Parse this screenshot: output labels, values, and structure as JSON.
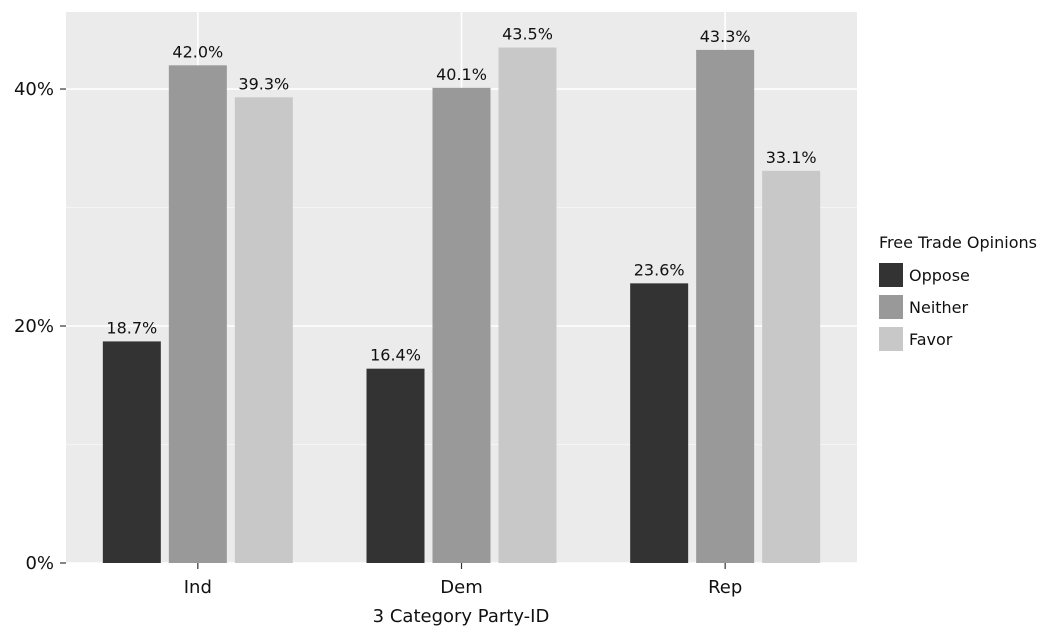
{
  "chart_data": {
    "type": "bar",
    "categories": [
      "Ind",
      "Dem",
      "Rep"
    ],
    "series": [
      {
        "name": "Oppose",
        "values": [
          18.7,
          16.4,
          23.6
        ],
        "labels": [
          "18.7%",
          "16.4%",
          "23.6%"
        ],
        "color": "#333333"
      },
      {
        "name": "Neither",
        "values": [
          42.0,
          40.1,
          43.3
        ],
        "labels": [
          "42.0%",
          "40.1%",
          "43.3%"
        ],
        "color": "#999999"
      },
      {
        "name": "Favor",
        "values": [
          39.3,
          43.5,
          33.1
        ],
        "labels": [
          "39.3%",
          "43.5%",
          "33.1%"
        ],
        "color": "#c8c8c8"
      }
    ],
    "xlabel": "3 Category Party-ID",
    "ylabel": "",
    "ylim": [
      0,
      46.5
    ],
    "yticks": [
      0,
      20,
      40
    ],
    "ytick_labels": [
      "0%",
      "20%",
      "40%"
    ],
    "grid": true,
    "panel_background": "#ebebeb",
    "legend": {
      "title": "Free Trade Opinions",
      "position": "right"
    }
  }
}
